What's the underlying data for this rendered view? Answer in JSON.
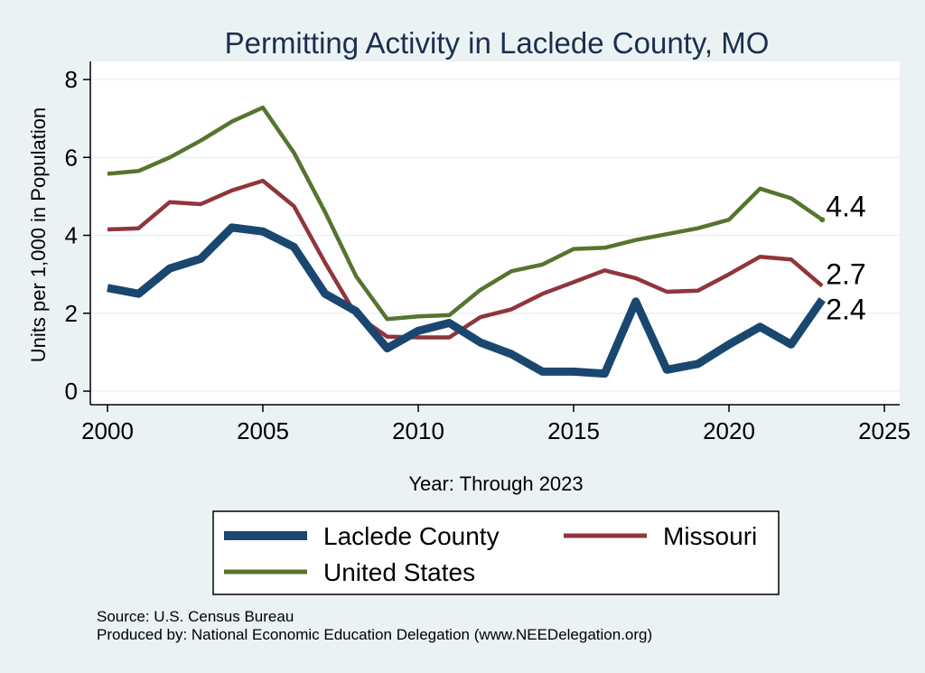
{
  "chart_data": {
    "type": "line",
    "title": "Permitting Activity in Laclede County, MO",
    "xlabel": "Year: Through 2023",
    "ylabel": "Units per 1,000 in Population",
    "xlim": [
      2000,
      2025
    ],
    "ylim": [
      0,
      8
    ],
    "x_ticks": [
      2000,
      2005,
      2010,
      2015,
      2020,
      2025
    ],
    "y_ticks": [
      0,
      2,
      4,
      6,
      8
    ],
    "grid": true,
    "legend_position": "bottom",
    "x": [
      2000,
      2001,
      2002,
      2003,
      2004,
      2005,
      2006,
      2007,
      2008,
      2009,
      2010,
      2011,
      2012,
      2013,
      2014,
      2015,
      2016,
      2017,
      2018,
      2019,
      2020,
      2021,
      2022,
      2023
    ],
    "series": [
      {
        "name": "Laclede County",
        "color": "#1a476f",
        "end_label": "2.4",
        "values": [
          2.65,
          2.5,
          3.15,
          3.4,
          4.2,
          4.1,
          3.7,
          2.5,
          2.05,
          1.1,
          1.55,
          1.75,
          1.25,
          0.95,
          0.5,
          0.5,
          0.45,
          2.3,
          0.55,
          0.7,
          1.2,
          1.65,
          1.2,
          2.35
        ]
      },
      {
        "name": "Missouri",
        "color": "#90353b",
        "end_label": "2.7",
        "values": [
          4.15,
          4.18,
          4.85,
          4.8,
          5.15,
          5.4,
          4.75,
          3.3,
          1.95,
          1.4,
          1.38,
          1.38,
          1.9,
          2.1,
          2.5,
          2.8,
          3.1,
          2.9,
          2.55,
          2.58,
          3.0,
          3.45,
          3.38,
          2.7
        ]
      },
      {
        "name": "United States",
        "color": "#55752f",
        "end_label": "4.4",
        "values": [
          5.58,
          5.65,
          6.0,
          6.43,
          6.92,
          7.28,
          6.12,
          4.6,
          2.95,
          1.85,
          1.92,
          1.95,
          2.6,
          3.08,
          3.25,
          3.65,
          3.68,
          3.88,
          4.03,
          4.18,
          4.4,
          5.2,
          4.95,
          4.4
        ]
      }
    ]
  },
  "notes": {
    "source": "Source: U.S. Census Bureau",
    "produced_by": "Produced by: National Economic Education Delegation (www.NEEDelegation.org)"
  }
}
